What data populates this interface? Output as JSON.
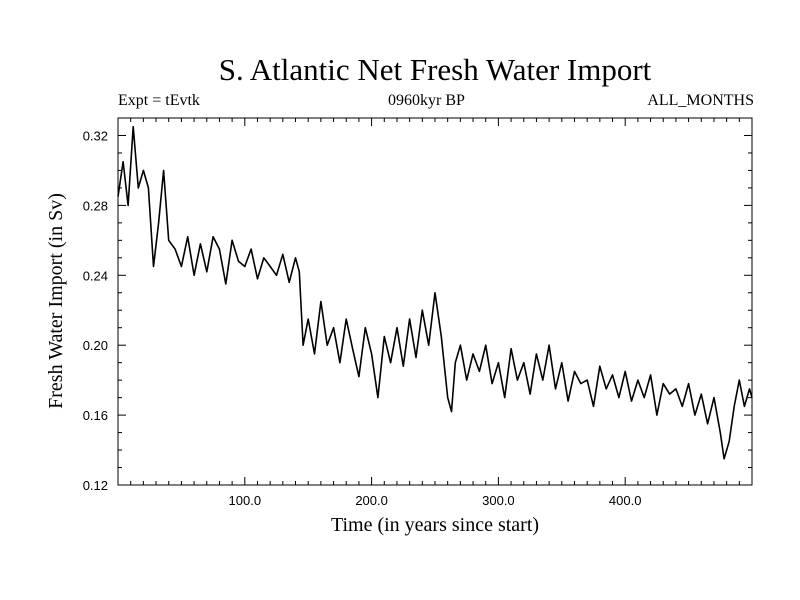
{
  "header": {
    "title": "S. Atlantic Net Fresh Water Import",
    "expt": "Expt = tEvtk",
    "period": "0960kyr BP",
    "months": "ALL_MONTHS"
  },
  "chart_data": {
    "type": "line",
    "title": "S. Atlantic Net Fresh Water Import",
    "xlabel": "Time (in years since start)",
    "ylabel": "Fresh Water Import (in Sv)",
    "xlim": [
      0,
      500
    ],
    "ylim": [
      0.12,
      0.33
    ],
    "x_ticks": [
      100,
      200,
      300,
      400
    ],
    "x_tick_labels": [
      "100.0",
      "200.0",
      "300.0",
      "400.0"
    ],
    "y_ticks": [
      0.12,
      0.16,
      0.2,
      0.24,
      0.28,
      0.32
    ],
    "y_tick_labels": [
      "0.12",
      "0.16",
      "0.20",
      "0.24",
      "0.28",
      "0.32"
    ],
    "grid": false,
    "series": [
      {
        "name": "Net fresh water import",
        "color": "#000000",
        "x": [
          0,
          4,
          8,
          12,
          16,
          20,
          24,
          28,
          32,
          36,
          40,
          45,
          50,
          55,
          60,
          65,
          70,
          75,
          80,
          85,
          90,
          95,
          100,
          105,
          110,
          115,
          120,
          125,
          130,
          135,
          140,
          143,
          146,
          150,
          155,
          160,
          165,
          170,
          175,
          180,
          185,
          190,
          195,
          200,
          205,
          210,
          215,
          220,
          225,
          230,
          235,
          240,
          245,
          250,
          255,
          260,
          263,
          266,
          270,
          275,
          280,
          285,
          290,
          295,
          300,
          305,
          310,
          315,
          320,
          325,
          330,
          335,
          340,
          345,
          350,
          355,
          360,
          365,
          370,
          375,
          380,
          385,
          390,
          395,
          400,
          405,
          410,
          415,
          420,
          425,
          430,
          435,
          440,
          445,
          450,
          455,
          460,
          465,
          470,
          475,
          478,
          482,
          486,
          490,
          494,
          498,
          500
        ],
        "values": [
          0.285,
          0.305,
          0.28,
          0.325,
          0.29,
          0.3,
          0.29,
          0.245,
          0.27,
          0.3,
          0.26,
          0.255,
          0.245,
          0.262,
          0.24,
          0.258,
          0.242,
          0.262,
          0.255,
          0.235,
          0.26,
          0.248,
          0.245,
          0.255,
          0.238,
          0.25,
          0.245,
          0.24,
          0.252,
          0.236,
          0.25,
          0.242,
          0.2,
          0.215,
          0.195,
          0.225,
          0.2,
          0.21,
          0.19,
          0.215,
          0.198,
          0.182,
          0.21,
          0.195,
          0.17,
          0.205,
          0.19,
          0.21,
          0.188,
          0.215,
          0.193,
          0.22,
          0.2,
          0.23,
          0.205,
          0.17,
          0.162,
          0.19,
          0.2,
          0.18,
          0.195,
          0.185,
          0.2,
          0.178,
          0.19,
          0.17,
          0.198,
          0.18,
          0.19,
          0.172,
          0.195,
          0.18,
          0.2,
          0.175,
          0.19,
          0.168,
          0.185,
          0.178,
          0.18,
          0.165,
          0.188,
          0.175,
          0.183,
          0.17,
          0.185,
          0.168,
          0.18,
          0.17,
          0.183,
          0.16,
          0.178,
          0.172,
          0.175,
          0.165,
          0.178,
          0.16,
          0.172,
          0.155,
          0.17,
          0.15,
          0.135,
          0.145,
          0.165,
          0.18,
          0.165,
          0.175,
          0.17
        ]
      }
    ]
  }
}
